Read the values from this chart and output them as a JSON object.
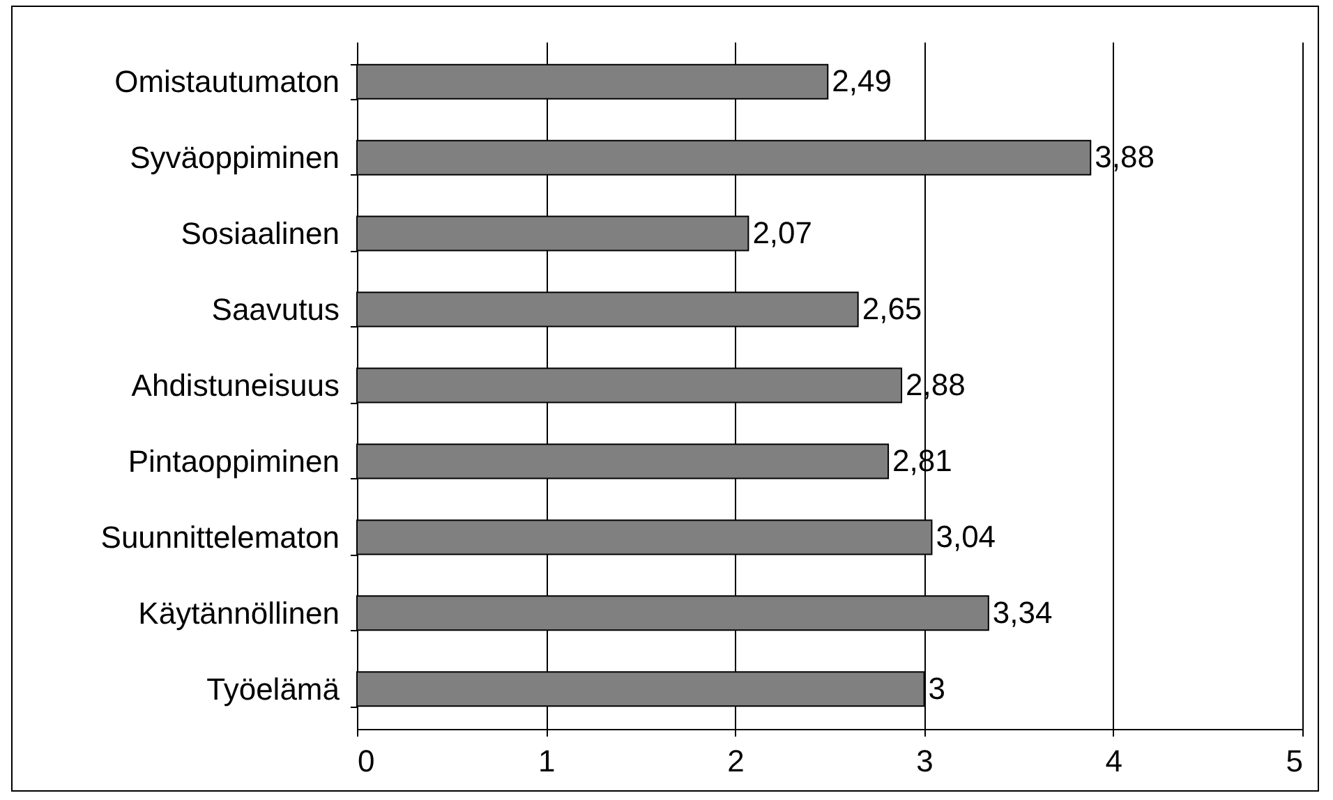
{
  "chart_data": {
    "type": "bar",
    "orientation": "horizontal",
    "categories": [
      "Omistautumaton",
      "Syväoppiminen",
      "Sosiaalinen",
      "Saavutus",
      "Ahdistuneisuus",
      "Pintaoppiminen",
      "Suunnittelematon",
      "Käytännöllinen",
      "Työelämä"
    ],
    "values": [
      2.49,
      3.88,
      2.07,
      2.65,
      2.88,
      2.81,
      3.04,
      3.34,
      3
    ],
    "color": "#808080",
    "value_labels": [
      "2,49",
      "3,88",
      "2,07",
      "2,65",
      "2,88",
      "2,81",
      "3,04",
      "3,34",
      "3"
    ],
    "xlim": [
      0,
      5
    ],
    "xticks": [
      0,
      1,
      2,
      3,
      4,
      5
    ],
    "grid": "x"
  }
}
